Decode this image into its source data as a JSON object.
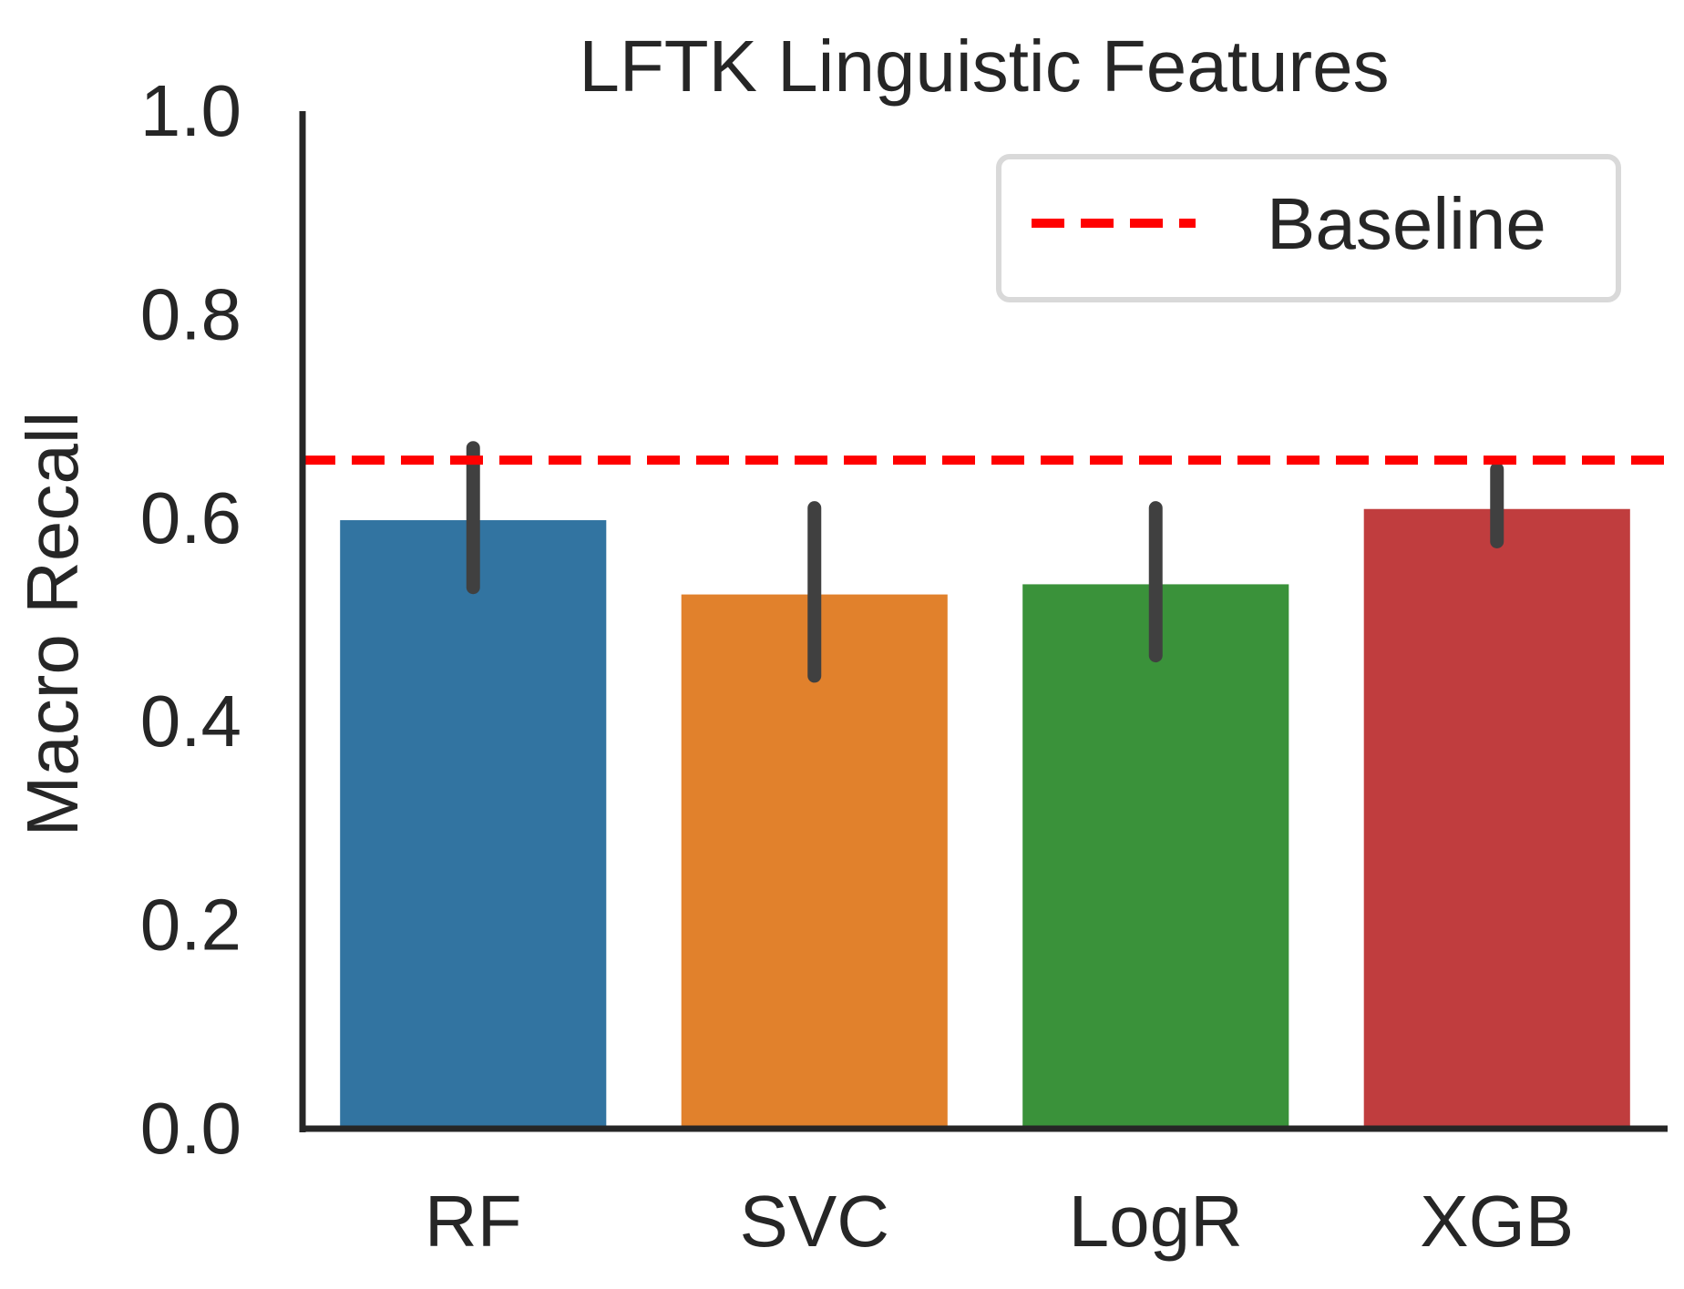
{
  "chart_data": {
    "type": "bar",
    "title": "LFTK Linguistic Features",
    "xlabel": "",
    "ylabel": "Macro Recall",
    "ylim": [
      0,
      1.0
    ],
    "yticks": [
      "0.0",
      "0.2",
      "0.4",
      "0.6",
      "0.8",
      "1.0"
    ],
    "categories": [
      "RF",
      "SVC",
      "LogR",
      "XGB"
    ],
    "values": [
      0.598,
      0.525,
      0.535,
      0.609
    ],
    "error_low": [
      0.532,
      0.445,
      0.465,
      0.577
    ],
    "error_high": [
      0.669,
      0.61,
      0.61,
      0.648
    ],
    "colors": [
      "#3274a1",
      "#e1812c",
      "#3a923a",
      "#c03d3e"
    ],
    "error_color": "#404040",
    "baseline": {
      "label": "Baseline",
      "value": 0.657,
      "color": "#ff0000",
      "style": "dashed"
    },
    "grid": false,
    "legend_position": "top-right"
  }
}
